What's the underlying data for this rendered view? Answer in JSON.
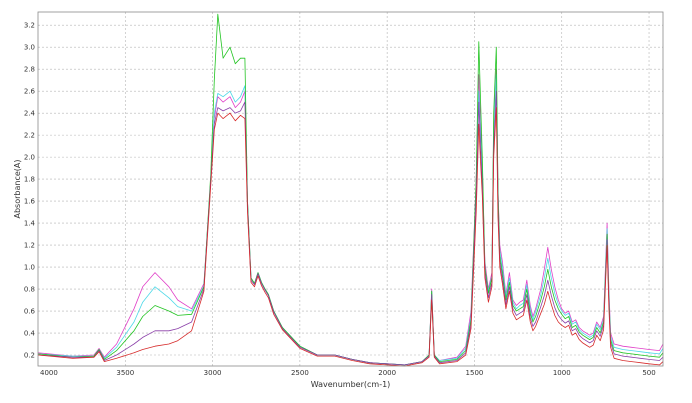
{
  "chart_data": {
    "type": "line",
    "xlabel": "Wavenumber(cm-1)",
    "ylabel": "Absorbance(A)",
    "xlim": [
      4000,
      420
    ],
    "ylim": [
      0.1,
      3.32
    ],
    "x_reversed": true,
    "grid": true,
    "x_ticks": [
      4000,
      3500,
      3000,
      2500,
      2000,
      1500,
      1000,
      500
    ],
    "y_ticks": [
      0.2,
      0.4,
      0.6,
      0.8,
      1.0,
      1.2,
      1.4,
      1.6,
      1.8,
      2.0,
      2.2,
      2.4,
      2.6,
      2.8,
      3.0,
      3.2
    ],
    "x_tick_labels": [
      "4000",
      "3500",
      "3000",
      "2500",
      "2000",
      "1500",
      "1000",
      "500"
    ],
    "y_tick_labels": [
      "0.2",
      "0.4",
      "0.6",
      "0.8",
      "1.0",
      "1.2",
      "1.4",
      "1.6",
      "1.8",
      "2.0",
      "2.2",
      "2.4",
      "2.6",
      "2.8",
      "3.0",
      "3.2"
    ],
    "x": [
      4000,
      3800,
      3680,
      3650,
      3620,
      3550,
      3450,
      3400,
      3330,
      3250,
      3200,
      3120,
      3050,
      3010,
      2990,
      2970,
      2940,
      2900,
      2870,
      2840,
      2815,
      2800,
      2780,
      2760,
      2740,
      2720,
      2700,
      2680,
      2650,
      2600,
      2500,
      2400,
      2300,
      2200,
      2100,
      2000,
      1900,
      1800,
      1760,
      1745,
      1730,
      1700,
      1600,
      1550,
      1520,
      1490,
      1475,
      1465,
      1455,
      1440,
      1420,
      1400,
      1390,
      1375,
      1365,
      1355,
      1340,
      1320,
      1300,
      1280,
      1260,
      1240,
      1220,
      1200,
      1180,
      1165,
      1150,
      1120,
      1100,
      1080,
      1060,
      1040,
      1020,
      1000,
      980,
      960,
      940,
      920,
      900,
      880,
      860,
      840,
      820,
      800,
      780,
      760,
      740,
      730,
      720,
      700,
      650,
      600,
      550,
      500,
      440,
      420
    ],
    "series": [
      {
        "color": "#e040c8",
        "values": [
          0.22,
          0.19,
          0.2,
          0.26,
          0.18,
          0.3,
          0.62,
          0.82,
          0.95,
          0.82,
          0.7,
          0.62,
          0.85,
          1.8,
          2.35,
          2.55,
          2.5,
          2.55,
          2.45,
          2.5,
          2.6,
          1.6,
          0.9,
          0.85,
          0.95,
          0.86,
          0.8,
          0.75,
          0.6,
          0.45,
          0.28,
          0.2,
          0.2,
          0.16,
          0.13,
          0.12,
          0.11,
          0.14,
          0.2,
          0.8,
          0.2,
          0.15,
          0.18,
          0.28,
          0.6,
          1.8,
          2.75,
          2.3,
          1.9,
          1.05,
          0.8,
          0.95,
          2.3,
          2.8,
          1.7,
          1.2,
          1.05,
          0.75,
          0.95,
          0.7,
          0.65,
          0.68,
          0.7,
          0.88,
          0.65,
          0.55,
          0.62,
          0.8,
          0.98,
          1.18,
          0.98,
          0.82,
          0.7,
          0.62,
          0.58,
          0.6,
          0.5,
          0.52,
          0.45,
          0.42,
          0.4,
          0.38,
          0.4,
          0.5,
          0.45,
          0.55,
          1.4,
          0.8,
          0.4,
          0.3,
          0.28,
          0.27,
          0.26,
          0.25,
          0.24,
          0.3
        ]
      },
      {
        "color": "#4dd9e8",
        "values": [
          0.21,
          0.19,
          0.19,
          0.25,
          0.17,
          0.27,
          0.5,
          0.68,
          0.82,
          0.72,
          0.64,
          0.6,
          0.83,
          1.8,
          2.4,
          2.58,
          2.55,
          2.6,
          2.5,
          2.55,
          2.65,
          1.6,
          0.9,
          0.85,
          0.95,
          0.86,
          0.8,
          0.75,
          0.6,
          0.45,
          0.28,
          0.2,
          0.2,
          0.16,
          0.13,
          0.12,
          0.11,
          0.14,
          0.2,
          0.78,
          0.2,
          0.15,
          0.17,
          0.26,
          0.55,
          1.75,
          2.6,
          2.2,
          1.85,
          1.0,
          0.78,
          0.92,
          2.25,
          2.75,
          1.65,
          1.15,
          1.0,
          0.73,
          0.9,
          0.68,
          0.62,
          0.65,
          0.67,
          0.84,
          0.62,
          0.52,
          0.59,
          0.75,
          0.9,
          1.08,
          0.9,
          0.76,
          0.66,
          0.6,
          0.56,
          0.58,
          0.48,
          0.5,
          0.43,
          0.4,
          0.38,
          0.36,
          0.38,
          0.48,
          0.43,
          0.52,
          1.35,
          0.75,
          0.37,
          0.27,
          0.25,
          0.24,
          0.23,
          0.22,
          0.21,
          0.26
        ]
      },
      {
        "color": "#22c422",
        "values": [
          0.21,
          0.18,
          0.19,
          0.25,
          0.16,
          0.24,
          0.42,
          0.55,
          0.65,
          0.6,
          0.56,
          0.57,
          0.82,
          1.85,
          2.7,
          3.3,
          2.9,
          3.0,
          2.85,
          2.9,
          2.9,
          1.6,
          0.9,
          0.85,
          0.95,
          0.86,
          0.8,
          0.75,
          0.6,
          0.45,
          0.28,
          0.2,
          0.2,
          0.16,
          0.13,
          0.12,
          0.11,
          0.14,
          0.2,
          0.78,
          0.2,
          0.14,
          0.16,
          0.24,
          0.52,
          1.8,
          3.05,
          2.5,
          2.0,
          1.0,
          0.76,
          0.9,
          2.4,
          3.0,
          1.7,
          1.1,
          0.95,
          0.7,
          0.86,
          0.65,
          0.6,
          0.62,
          0.64,
          0.8,
          0.58,
          0.5,
          0.55,
          0.7,
          0.82,
          0.98,
          0.82,
          0.7,
          0.62,
          0.57,
          0.53,
          0.55,
          0.45,
          0.47,
          0.41,
          0.38,
          0.36,
          0.34,
          0.36,
          0.45,
          0.4,
          0.5,
          1.3,
          0.72,
          0.34,
          0.24,
          0.22,
          0.21,
          0.2,
          0.19,
          0.18,
          0.22
        ]
      },
      {
        "color": "#8a3fa8",
        "values": [
          0.2,
          0.18,
          0.18,
          0.24,
          0.15,
          0.2,
          0.3,
          0.36,
          0.42,
          0.42,
          0.44,
          0.5,
          0.8,
          1.8,
          2.3,
          2.45,
          2.42,
          2.45,
          2.4,
          2.42,
          2.5,
          1.55,
          0.88,
          0.84,
          0.94,
          0.85,
          0.79,
          0.74,
          0.59,
          0.44,
          0.27,
          0.2,
          0.2,
          0.16,
          0.13,
          0.12,
          0.11,
          0.14,
          0.19,
          0.75,
          0.19,
          0.13,
          0.15,
          0.22,
          0.48,
          1.65,
          2.5,
          2.1,
          1.75,
          0.95,
          0.72,
          0.86,
          2.1,
          2.6,
          1.55,
          1.05,
          0.9,
          0.66,
          0.82,
          0.62,
          0.56,
          0.58,
          0.6,
          0.75,
          0.54,
          0.46,
          0.5,
          0.64,
          0.74,
          0.88,
          0.74,
          0.63,
          0.56,
          0.52,
          0.49,
          0.51,
          0.42,
          0.44,
          0.38,
          0.35,
          0.33,
          0.31,
          0.33,
          0.42,
          0.37,
          0.47,
          1.25,
          0.68,
          0.31,
          0.21,
          0.19,
          0.18,
          0.17,
          0.16,
          0.15,
          0.18
        ]
      },
      {
        "color": "#d62a2a",
        "values": [
          0.2,
          0.17,
          0.18,
          0.23,
          0.14,
          0.17,
          0.22,
          0.25,
          0.28,
          0.3,
          0.33,
          0.42,
          0.78,
          1.75,
          2.25,
          2.4,
          2.35,
          2.4,
          2.33,
          2.38,
          2.35,
          1.5,
          0.86,
          0.82,
          0.92,
          0.83,
          0.77,
          0.72,
          0.57,
          0.43,
          0.26,
          0.19,
          0.19,
          0.15,
          0.12,
          0.11,
          0.1,
          0.13,
          0.18,
          0.7,
          0.18,
          0.12,
          0.14,
          0.2,
          0.44,
          1.5,
          2.3,
          1.95,
          1.65,
          0.9,
          0.68,
          0.82,
          2.0,
          2.45,
          1.45,
          1.0,
          0.85,
          0.62,
          0.78,
          0.58,
          0.52,
          0.54,
          0.56,
          0.7,
          0.5,
          0.42,
          0.46,
          0.58,
          0.66,
          0.78,
          0.66,
          0.56,
          0.5,
          0.47,
          0.45,
          0.47,
          0.38,
          0.4,
          0.34,
          0.31,
          0.29,
          0.27,
          0.29,
          0.38,
          0.33,
          0.43,
          1.2,
          0.63,
          0.27,
          0.17,
          0.15,
          0.14,
          0.13,
          0.12,
          0.11,
          0.14
        ]
      }
    ]
  }
}
